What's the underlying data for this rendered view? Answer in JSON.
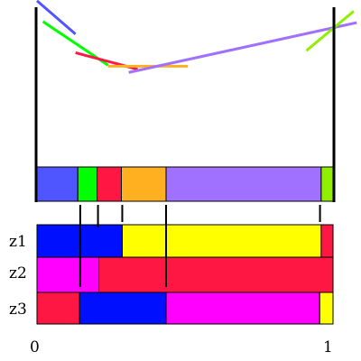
{
  "colors": {
    "blue_light": "#4f55ff",
    "green": "#00ff00",
    "red": "#ff1744",
    "orange": "#ffb020",
    "purple": "#a070ff",
    "lime": "#90ee00",
    "blue": "#0010ff",
    "yellow": "#ffff00",
    "magenta": "#ff00ff",
    "black": "#000000"
  },
  "lines": [
    {
      "name": "blue-line",
      "color": "#4f55ff",
      "from": [
        0.0,
        0.97
      ],
      "to": [
        0.13,
        0.81
      ]
    },
    {
      "name": "green-line",
      "color": "#00ff00",
      "from": [
        0.02,
        0.87
      ],
      "to": [
        0.24,
        0.66
      ]
    },
    {
      "name": "red-line",
      "color": "#ff1744",
      "from": [
        0.13,
        0.72
      ],
      "to": [
        0.34,
        0.64
      ]
    },
    {
      "name": "orange-line",
      "color": "#ffb020",
      "from": [
        0.24,
        0.655
      ],
      "to": [
        0.51,
        0.655
      ]
    },
    {
      "name": "purple-line",
      "color": "#a070ff",
      "from": [
        0.31,
        0.625
      ],
      "to": [
        1.08,
        0.865
      ]
    },
    {
      "name": "lime-line",
      "color": "#90ee00",
      "from": [
        0.91,
        0.73
      ],
      "to": [
        1.07,
        0.92
      ]
    }
  ],
  "envelope": {
    "segments": [
      {
        "name": "envelope-blue",
        "color": "#4f55ff",
        "start": 0.0,
        "end": 0.138
      },
      {
        "name": "envelope-green",
        "color": "#00ff00",
        "start": 0.138,
        "end": 0.203
      },
      {
        "name": "envelope-red",
        "color": "#ff1744",
        "start": 0.203,
        "end": 0.285
      },
      {
        "name": "envelope-orange",
        "color": "#ffb020",
        "start": 0.285,
        "end": 0.436
      },
      {
        "name": "envelope-purple",
        "color": "#a070ff",
        "start": 0.436,
        "end": 0.96
      },
      {
        "name": "envelope-lime",
        "color": "#90ee00",
        "start": 0.96,
        "end": 1.0
      }
    ]
  },
  "rows": [
    {
      "label": "z1",
      "segments": [
        {
          "color": "#0010ff",
          "start": 0.0,
          "end": 0.288
        },
        {
          "color": "#ffff00",
          "start": 0.288,
          "end": 0.96
        },
        {
          "color": "#ff1744",
          "start": 0.96,
          "end": 1.0
        }
      ]
    },
    {
      "label": "z2",
      "segments": [
        {
          "color": "#ff00ff",
          "start": 0.0,
          "end": 0.209
        },
        {
          "color": "#ff1744",
          "start": 0.209,
          "end": 1.0
        }
      ]
    },
    {
      "label": "z3",
      "segments": [
        {
          "color": "#ff1744",
          "start": 0.0,
          "end": 0.144
        },
        {
          "color": "#0010ff",
          "start": 0.144,
          "end": 0.436
        },
        {
          "color": "#ff00ff",
          "start": 0.436,
          "end": 0.955
        },
        {
          "color": "#ffff00",
          "start": 0.955,
          "end": 1.0
        }
      ]
    }
  ],
  "dividers": [
    {
      "name": "divider-green-red",
      "at": 0.146,
      "depth": 3
    },
    {
      "name": "divider-red-orange",
      "at": 0.206,
      "depth": 1
    },
    {
      "name": "divider-orange-purple",
      "at": 0.288,
      "depth": 0
    },
    {
      "name": "divider-purple-lime",
      "at": 0.436,
      "depth": 3
    },
    {
      "name": "divider-lime-end",
      "at": 0.956,
      "depth": 0
    }
  ],
  "axis": {
    "min_label": "0",
    "max_label": "1"
  }
}
